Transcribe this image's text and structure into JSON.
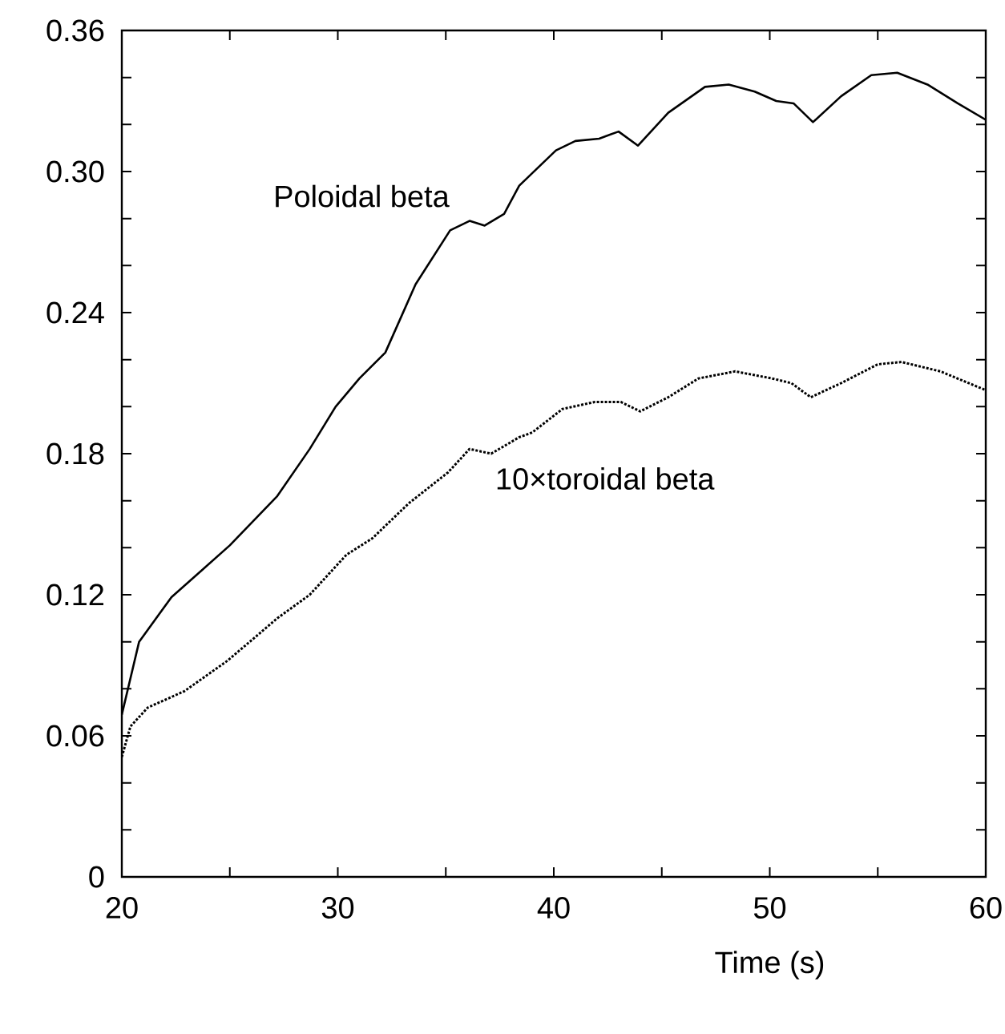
{
  "chart_data": {
    "type": "line",
    "xlabel": "Time (s)",
    "xlim": [
      20,
      60
    ],
    "xticks": [
      20,
      {
        "value": 25,
        "label": null
      },
      30,
      {
        "value": 35,
        "label": null
      },
      40,
      {
        "value": 45,
        "label": null
      },
      50,
      {
        "value": 55,
        "label": null
      },
      60
    ],
    "ylim": [
      0,
      0.36
    ],
    "yticks": [
      0,
      {
        "value": 0.02,
        "label": null
      },
      {
        "value": 0.04,
        "label": null
      },
      0.06,
      {
        "value": 0.08,
        "label": null
      },
      {
        "value": 0.1,
        "label": null
      },
      0.12,
      {
        "value": 0.14,
        "label": null
      },
      {
        "value": 0.16,
        "label": null
      },
      0.18,
      {
        "value": 0.2,
        "label": null
      },
      {
        "value": 0.22,
        "label": null
      },
      0.24,
      {
        "value": 0.26,
        "label": null
      },
      {
        "value": 0.28,
        "label": null
      },
      {
        "value": 0.3,
        "label": "0.30"
      },
      {
        "value": 0.32,
        "label": null
      },
      {
        "value": 0.34,
        "label": null
      },
      0.36
    ],
    "grid": false,
    "legend": false,
    "marker": "none",
    "series": [
      {
        "name": "Poloidal beta",
        "color": "#000000",
        "line_style": "solid",
        "x": [
          20,
          20.8,
          22.3,
          25,
          27.2,
          28.7,
          29.9,
          31,
          32.2,
          33.6,
          35.2,
          36.1,
          36.8,
          37.7,
          38.4,
          40.1,
          41,
          42.1,
          43,
          43.9,
          45.3,
          47,
          48.1,
          49.3,
          50.3,
          51.1,
          52,
          53.3,
          54.7,
          55.9,
          57.3,
          58.7,
          60
        ],
        "values": [
          0.069,
          0.1,
          0.119,
          0.141,
          0.162,
          0.182,
          0.2,
          0.212,
          0.223,
          0.252,
          0.275,
          0.279,
          0.277,
          0.282,
          0.294,
          0.309,
          0.313,
          0.314,
          0.317,
          0.311,
          0.325,
          0.336,
          0.337,
          0.334,
          0.33,
          0.329,
          0.321,
          0.332,
          0.341,
          0.342,
          0.337,
          0.329,
          0.322
        ]
      },
      {
        "name": "10×toroidal beta",
        "color": "#000000",
        "line_style": "dotted",
        "x": [
          20,
          20.4,
          21.2,
          22.9,
          24.9,
          27.2,
          28.7,
          30.4,
          31.6,
          33.3,
          35.1,
          36.1,
          37.1,
          38.4,
          39,
          40.4,
          41.9,
          43.1,
          44,
          45.3,
          46.7,
          48.4,
          50.1,
          51,
          51.9,
          53.3,
          55,
          56.1,
          57.9,
          60
        ],
        "values": [
          0.051,
          0.064,
          0.072,
          0.079,
          0.092,
          0.11,
          0.12,
          0.137,
          0.144,
          0.159,
          0.172,
          0.182,
          0.18,
          0.187,
          0.189,
          0.199,
          0.202,
          0.202,
          0.198,
          0.204,
          0.212,
          0.215,
          0.212,
          0.21,
          0.204,
          0.21,
          0.218,
          0.219,
          0.215,
          0.207
        ]
      }
    ]
  }
}
